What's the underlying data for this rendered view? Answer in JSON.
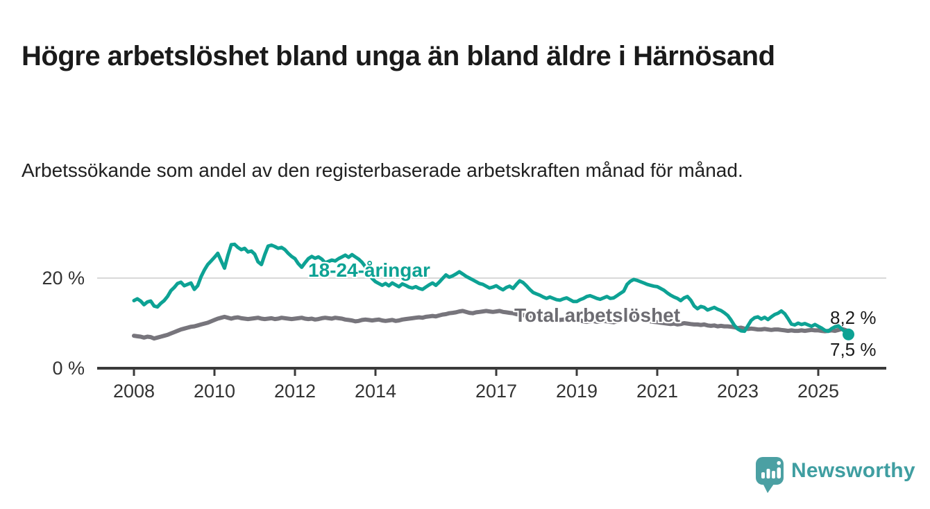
{
  "header": {
    "title": "Högre arbetslöshet bland unga än bland äldre i Härnösand",
    "subtitle": "Arbetssökande som andel av den registerbaserade arbetskraften månad för månad."
  },
  "branding": {
    "logo_text": "Newsworthy",
    "logo_icon": "bar-chart-speech-bubble-icon",
    "logo_color": "#4ba0a3"
  },
  "colors": {
    "youth_line": "#0da294",
    "total_line": "#77757c",
    "gridline": "#d8d8d8",
    "axis": "#3a3a3a",
    "text": "#333333"
  },
  "chart_data": {
    "type": "line",
    "unit": "%",
    "interval": "monthly",
    "start": "2008-01",
    "end": "2025-10",
    "grid": "single horizontal gridline at 20 %",
    "legend_position": "inline-labels-on-lines",
    "ylim": [
      0,
      29
    ],
    "y_ticks": [
      "0 %",
      "20 %"
    ],
    "x_ticks": [
      2008,
      2010,
      2012,
      2014,
      2017,
      2019,
      2021,
      2023,
      2025
    ],
    "series": [
      {
        "name": "18-24-åringar",
        "color": "#0da294",
        "last_value_label": "7,5 %",
        "last_value": 7.5,
        "values": [
          15.0,
          15.4,
          14.9,
          14.1,
          14.7,
          14.9,
          13.8,
          13.6,
          14.4,
          15.0,
          15.9,
          17.2,
          17.9,
          18.8,
          19.1,
          18.3,
          18.6,
          18.9,
          17.5,
          18.3,
          20.3,
          21.8,
          23.0,
          23.8,
          24.6,
          25.5,
          23.8,
          22.2,
          25.0,
          27.4,
          27.5,
          26.8,
          26.3,
          26.6,
          25.8,
          26.0,
          25.3,
          23.6,
          23.0,
          25.2,
          27.1,
          27.3,
          27.0,
          26.6,
          26.8,
          26.3,
          25.5,
          24.8,
          24.3,
          23.2,
          22.4,
          23.4,
          24.3,
          24.8,
          24.4,
          24.7,
          24.2,
          23.4,
          23.7,
          24.0,
          23.8,
          24.3,
          24.7,
          25.1,
          24.6,
          25.2,
          24.7,
          24.2,
          23.5,
          22.5,
          21.0,
          19.9,
          19.2,
          18.8,
          18.4,
          18.8,
          18.3,
          18.9,
          18.5,
          18.1,
          18.7,
          18.4,
          18.0,
          17.8,
          18.1,
          17.7,
          17.5,
          18.0,
          18.5,
          18.9,
          18.4,
          19.1,
          19.9,
          20.7,
          20.2,
          20.5,
          20.9,
          21.4,
          20.9,
          20.4,
          20.0,
          19.6,
          19.2,
          18.8,
          18.6,
          18.2,
          17.8,
          18.0,
          18.3,
          17.8,
          17.4,
          17.9,
          18.2,
          17.7,
          18.6,
          19.4,
          19.0,
          18.3,
          17.5,
          16.8,
          16.5,
          16.2,
          15.8,
          15.5,
          15.8,
          15.5,
          15.2,
          15.1,
          15.4,
          15.6,
          15.2,
          14.8,
          14.8,
          15.2,
          15.5,
          15.9,
          16.1,
          15.8,
          15.5,
          15.3,
          15.6,
          15.9,
          15.5,
          15.6,
          16.1,
          16.6,
          17.1,
          18.6,
          19.3,
          19.7,
          19.5,
          19.2,
          18.9,
          18.6,
          18.4,
          18.2,
          18.1,
          17.7,
          17.3,
          16.7,
          16.2,
          15.8,
          15.5,
          15.0,
          15.6,
          15.9,
          15.1,
          13.8,
          13.2,
          13.7,
          13.5,
          12.9,
          13.2,
          13.5,
          13.1,
          12.8,
          12.3,
          11.7,
          10.7,
          9.5,
          8.7,
          8.3,
          8.2,
          9.4,
          10.6,
          11.2,
          11.4,
          10.9,
          11.3,
          10.8,
          11.4,
          11.9,
          12.2,
          12.7,
          12.1,
          11.0,
          9.8,
          9.6,
          10.0,
          9.7,
          9.9,
          9.6,
          9.3,
          9.7,
          9.3,
          8.9,
          8.4,
          8.2,
          8.8,
          9.2,
          9.4,
          8.7,
          8.1,
          7.5
        ]
      },
      {
        "name": "Total arbetslöshet",
        "color": "#77757c",
        "last_value_label": "8,2 %",
        "last_value": 8.2,
        "values": [
          7.2,
          7.1,
          7.0,
          6.8,
          7.0,
          6.9,
          6.6,
          6.8,
          7.0,
          7.2,
          7.4,
          7.7,
          8.0,
          8.3,
          8.6,
          8.8,
          9.0,
          9.2,
          9.3,
          9.5,
          9.7,
          9.9,
          10.1,
          10.4,
          10.7,
          11.0,
          11.2,
          11.4,
          11.2,
          11.0,
          11.2,
          11.3,
          11.1,
          11.0,
          10.9,
          11.0,
          11.1,
          11.2,
          11.0,
          10.9,
          11.0,
          11.1,
          10.9,
          11.0,
          11.2,
          11.1,
          11.0,
          10.9,
          11.0,
          11.1,
          11.2,
          11.0,
          10.9,
          11.0,
          10.8,
          10.9,
          11.1,
          11.2,
          11.1,
          11.0,
          11.2,
          11.1,
          11.0,
          10.8,
          10.7,
          10.6,
          10.4,
          10.5,
          10.7,
          10.8,
          10.7,
          10.6,
          10.7,
          10.8,
          10.6,
          10.5,
          10.6,
          10.7,
          10.5,
          10.6,
          10.8,
          10.9,
          11.0,
          11.1,
          11.2,
          11.3,
          11.2,
          11.4,
          11.5,
          11.6,
          11.5,
          11.7,
          11.9,
          12.0,
          12.2,
          12.3,
          12.4,
          12.6,
          12.7,
          12.5,
          12.3,
          12.2,
          12.4,
          12.5,
          12.6,
          12.7,
          12.6,
          12.5,
          12.6,
          12.7,
          12.5,
          12.4,
          12.3,
          12.2,
          12.0,
          11.9,
          11.8,
          11.7,
          11.6,
          11.5,
          11.4,
          11.3,
          11.2,
          11.1,
          11.0,
          10.9,
          10.8,
          10.7,
          10.8,
          10.7,
          10.6,
          10.5,
          10.5,
          10.6,
          10.4,
          10.3,
          10.4,
          10.5,
          10.3,
          10.4,
          10.5,
          10.4,
          10.3,
          10.2,
          10.4,
          10.5,
          10.8,
          11.1,
          11.2,
          11.3,
          11.1,
          11.0,
          10.8,
          10.6,
          10.4,
          10.3,
          10.2,
          10.1,
          10.0,
          9.9,
          9.8,
          9.9,
          9.7,
          9.8,
          10.0,
          9.9,
          9.8,
          9.7,
          9.7,
          9.6,
          9.7,
          9.5,
          9.4,
          9.5,
          9.3,
          9.4,
          9.3,
          9.3,
          9.2,
          9.1,
          8.9,
          9.0,
          8.8,
          8.7,
          8.8,
          8.7,
          8.6,
          8.6,
          8.7,
          8.6,
          8.5,
          8.6,
          8.6,
          8.5,
          8.4,
          8.3,
          8.4,
          8.3,
          8.3,
          8.4,
          8.3,
          8.4,
          8.5,
          8.4,
          8.4,
          8.3,
          8.2,
          8.3,
          8.4,
          8.3,
          8.5,
          8.7,
          8.5,
          8.2
        ]
      }
    ]
  }
}
